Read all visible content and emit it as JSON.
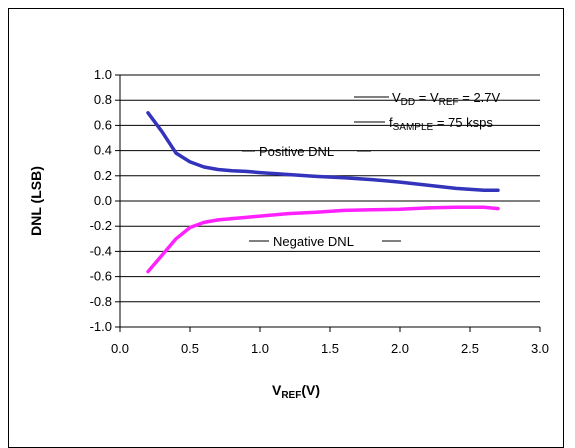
{
  "chart_data": {
    "type": "line",
    "title": "",
    "xlabel": {
      "main": "V",
      "sub": "REF",
      "suffix": "(V)"
    },
    "ylabel": "DNL (LSB)",
    "xlim": [
      0,
      3
    ],
    "ylim": [
      -1,
      1
    ],
    "x_ticks": [
      "0.0",
      "0.5",
      "1.0",
      "1.5",
      "2.0",
      "2.5",
      "3.0"
    ],
    "y_ticks": [
      "1.0",
      "0.8",
      "0.6",
      "0.4",
      "0.2",
      "0.0",
      "-0.2",
      "-0.4",
      "-0.6",
      "-0.8",
      "-1.0"
    ],
    "grid": "horizontal",
    "series": [
      {
        "name": "Positive DNL",
        "color": "#3333bb",
        "points": [
          [
            0.2,
            0.7
          ],
          [
            0.3,
            0.55
          ],
          [
            0.4,
            0.38
          ],
          [
            0.5,
            0.31
          ],
          [
            0.6,
            0.27
          ],
          [
            0.7,
            0.25
          ],
          [
            0.8,
            0.24
          ],
          [
            0.9,
            0.235
          ],
          [
            1.0,
            0.225
          ],
          [
            1.2,
            0.21
          ],
          [
            1.4,
            0.195
          ],
          [
            1.6,
            0.185
          ],
          [
            1.8,
            0.17
          ],
          [
            2.0,
            0.15
          ],
          [
            2.2,
            0.125
          ],
          [
            2.4,
            0.1
          ],
          [
            2.6,
            0.085
          ],
          [
            2.7,
            0.085
          ]
        ]
      },
      {
        "name": "Negative DNL",
        "color": "#ff22ff",
        "points": [
          [
            0.2,
            -0.56
          ],
          [
            0.3,
            -0.43
          ],
          [
            0.4,
            -0.3
          ],
          [
            0.5,
            -0.21
          ],
          [
            0.6,
            -0.17
          ],
          [
            0.7,
            -0.15
          ],
          [
            0.8,
            -0.14
          ],
          [
            0.9,
            -0.13
          ],
          [
            1.0,
            -0.12
          ],
          [
            1.2,
            -0.1
          ],
          [
            1.4,
            -0.09
          ],
          [
            1.6,
            -0.075
          ],
          [
            1.8,
            -0.07
          ],
          [
            2.0,
            -0.065
          ],
          [
            2.2,
            -0.055
          ],
          [
            2.4,
            -0.05
          ],
          [
            2.6,
            -0.05
          ],
          [
            2.7,
            -0.06
          ]
        ]
      }
    ],
    "annotations": {
      "conditions_line1": {
        "v1": "V",
        "v1_sub": "DD",
        "mid": " = V",
        "v2_sub": "REF",
        "tail": " = 2.7V"
      },
      "conditions_line2": {
        "f": "f",
        "f_sub": "SAMPLE",
        "tail": " = 75 ksps"
      },
      "positive_label": "Positive DNL",
      "negative_label": "Negative DNL"
    }
  },
  "colors": {
    "axis": "#000000",
    "grid": "#000000"
  }
}
